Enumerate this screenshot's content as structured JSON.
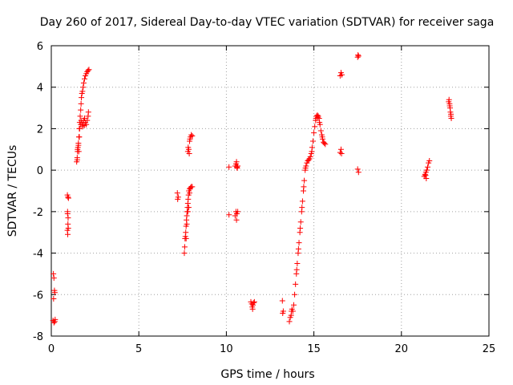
{
  "chart_data": {
    "type": "scatter",
    "title": "Day 260 of 2017, Sidereal Day-to-day VTEC variation (SDTVAR) for receiver saga",
    "xlabel": "GPS time / hours",
    "ylabel": "SDTVAR / TECUs",
    "xlim": [
      0,
      25
    ],
    "ylim": [
      -8,
      6
    ],
    "xticks": [
      "0",
      "5",
      "10",
      "15",
      "20",
      "25"
    ],
    "yticks": [
      "-8",
      "-6",
      "-4",
      "-2",
      "0",
      "2",
      "4",
      "6"
    ],
    "grid": true,
    "marker": "plus",
    "color": "#ff0000",
    "series": [
      {
        "points": [
          [
            0.1,
            -7.25
          ],
          [
            0.15,
            -7.35
          ],
          [
            0.2,
            -7.3
          ],
          [
            0.22,
            -7.2
          ],
          [
            0.12,
            -5.0
          ],
          [
            0.15,
            -5.2
          ],
          [
            0.18,
            -5.8
          ],
          [
            0.13,
            -6.2
          ],
          [
            0.2,
            -5.9
          ],
          [
            0.92,
            -1.2
          ],
          [
            0.95,
            -1.3
          ],
          [
            0.98,
            -1.35
          ],
          [
            0.93,
            -2.0
          ],
          [
            0.96,
            -2.3
          ],
          [
            0.95,
            -2.6
          ],
          [
            0.92,
            -2.9
          ],
          [
            0.94,
            -3.1
          ],
          [
            0.97,
            -2.8
          ],
          [
            0.93,
            -2.1
          ],
          [
            1.45,
            0.4
          ],
          [
            1.48,
            0.6
          ],
          [
            1.5,
            0.9
          ],
          [
            1.52,
            1.1
          ],
          [
            1.55,
            1.3
          ],
          [
            1.58,
            1.6
          ],
          [
            1.6,
            2.0
          ],
          [
            1.62,
            2.3
          ],
          [
            1.65,
            2.6
          ],
          [
            1.68,
            2.9
          ],
          [
            1.7,
            3.2
          ],
          [
            1.72,
            3.5
          ],
          [
            1.75,
            3.7
          ],
          [
            1.78,
            3.8
          ],
          [
            1.82,
            4.0
          ],
          [
            1.85,
            4.2
          ],
          [
            1.9,
            4.4
          ],
          [
            1.95,
            4.55
          ],
          [
            2.0,
            4.65
          ],
          [
            2.05,
            4.75
          ],
          [
            2.1,
            4.8
          ],
          [
            2.15,
            4.85
          ],
          [
            1.5,
            1.0
          ],
          [
            1.55,
            1.2
          ],
          [
            1.6,
            1.6
          ],
          [
            1.62,
            2.0
          ],
          [
            1.68,
            2.2
          ],
          [
            1.75,
            2.3
          ],
          [
            1.8,
            2.2
          ],
          [
            1.85,
            2.4
          ],
          [
            1.9,
            2.5
          ],
          [
            1.95,
            2.3
          ],
          [
            2.0,
            2.2
          ],
          [
            2.05,
            2.4
          ],
          [
            2.1,
            2.6
          ],
          [
            2.12,
            2.8
          ],
          [
            1.7,
            2.4
          ],
          [
            1.78,
            2.1
          ],
          [
            1.88,
            2.15
          ],
          [
            1.48,
            0.5
          ],
          [
            1.57,
            0.9
          ],
          [
            7.2,
            -1.1
          ],
          [
            7.25,
            -1.3
          ],
          [
            7.22,
            -1.4
          ],
          [
            7.6,
            -4.0
          ],
          [
            7.62,
            -3.7
          ],
          [
            7.64,
            -3.3
          ],
          [
            7.66,
            -3.2
          ],
          [
            7.68,
            -3.0
          ],
          [
            7.7,
            -2.7
          ],
          [
            7.72,
            -2.4
          ],
          [
            7.74,
            -2.2
          ],
          [
            7.76,
            -2.0
          ],
          [
            7.78,
            -1.8
          ],
          [
            7.8,
            -1.6
          ],
          [
            7.82,
            -1.4
          ],
          [
            7.84,
            -1.2
          ],
          [
            7.86,
            -1.0
          ],
          [
            7.9,
            -0.9
          ],
          [
            7.95,
            -0.85
          ],
          [
            8.0,
            -0.8
          ],
          [
            8.05,
            -0.8
          ],
          [
            7.7,
            -3.3
          ],
          [
            7.74,
            -2.6
          ],
          [
            7.8,
            -2.0
          ],
          [
            7.85,
            -1.8
          ],
          [
            7.9,
            -1.1
          ],
          [
            7.8,
            0.9
          ],
          [
            7.85,
            1.0
          ],
          [
            7.82,
            1.1
          ],
          [
            7.88,
            0.8
          ],
          [
            7.9,
            1.4
          ],
          [
            7.95,
            1.6
          ],
          [
            8.0,
            1.7
          ],
          [
            8.05,
            1.65
          ],
          [
            7.92,
            1.5
          ],
          [
            10.15,
            0.15
          ],
          [
            10.5,
            0.2
          ],
          [
            10.55,
            0.3
          ],
          [
            10.58,
            0.4
          ],
          [
            10.6,
            0.15
          ],
          [
            10.62,
            0.1
          ],
          [
            10.65,
            0.2
          ],
          [
            10.15,
            -2.15
          ],
          [
            10.5,
            -2.2
          ],
          [
            10.55,
            -2.0
          ],
          [
            10.58,
            -2.4
          ],
          [
            10.6,
            -2.1
          ],
          [
            10.65,
            -2.0
          ],
          [
            11.4,
            -6.35
          ],
          [
            11.45,
            -6.45
          ],
          [
            11.48,
            -6.6
          ],
          [
            11.5,
            -6.7
          ],
          [
            11.52,
            -6.5
          ],
          [
            11.55,
            -6.4
          ],
          [
            11.6,
            -6.35
          ],
          [
            13.2,
            -6.3
          ],
          [
            13.25,
            -6.8
          ],
          [
            13.22,
            -6.9
          ],
          [
            13.6,
            -7.3
          ],
          [
            13.65,
            -7.1
          ],
          [
            13.7,
            -7.0
          ],
          [
            13.72,
            -6.8
          ],
          [
            13.75,
            -6.7
          ],
          [
            13.8,
            -6.8
          ],
          [
            13.85,
            -6.5
          ],
          [
            13.9,
            -6.0
          ],
          [
            13.95,
            -5.5
          ],
          [
            14.0,
            -5.0
          ],
          [
            14.05,
            -4.5
          ],
          [
            14.1,
            -4.0
          ],
          [
            14.15,
            -3.5
          ],
          [
            14.2,
            -3.0
          ],
          [
            14.25,
            -2.5
          ],
          [
            14.3,
            -2.0
          ],
          [
            14.35,
            -1.5
          ],
          [
            14.4,
            -1.0
          ],
          [
            14.45,
            -0.5
          ],
          [
            14.5,
            0.0
          ],
          [
            14.55,
            0.2
          ],
          [
            14.6,
            0.35
          ],
          [
            14.65,
            0.45
          ],
          [
            14.7,
            0.5
          ],
          [
            14.75,
            0.55
          ],
          [
            14.8,
            0.65
          ],
          [
            14.85,
            0.8
          ],
          [
            14.9,
            1.1
          ],
          [
            14.95,
            1.4
          ],
          [
            15.0,
            1.8
          ],
          [
            15.05,
            2.1
          ],
          [
            15.1,
            2.4
          ],
          [
            15.15,
            2.6
          ],
          [
            15.2,
            2.65
          ],
          [
            15.25,
            2.6
          ],
          [
            15.3,
            2.5
          ],
          [
            15.35,
            2.2
          ],
          [
            15.4,
            1.9
          ],
          [
            15.45,
            1.7
          ],
          [
            15.5,
            1.5
          ],
          [
            15.55,
            1.35
          ],
          [
            15.6,
            1.3
          ],
          [
            15.65,
            1.25
          ],
          [
            14.02,
            -4.8
          ],
          [
            14.12,
            -3.8
          ],
          [
            14.22,
            -2.8
          ],
          [
            14.32,
            -1.8
          ],
          [
            14.42,
            -0.8
          ],
          [
            14.52,
            0.1
          ],
          [
            14.88,
            0.9
          ],
          [
            15.12,
            2.5
          ],
          [
            15.22,
            2.55
          ],
          [
            15.32,
            2.3
          ],
          [
            15.48,
            1.6
          ],
          [
            16.5,
            4.55
          ],
          [
            16.55,
            4.7
          ],
          [
            16.6,
            4.6
          ],
          [
            16.5,
            0.85
          ],
          [
            16.55,
            1.0
          ],
          [
            16.58,
            0.8
          ],
          [
            17.5,
            5.45
          ],
          [
            17.52,
            5.55
          ],
          [
            17.55,
            5.5
          ],
          [
            17.5,
            0.05
          ],
          [
            17.55,
            -0.1
          ],
          [
            21.3,
            -0.3
          ],
          [
            21.35,
            -0.2
          ],
          [
            21.4,
            -0.1
          ],
          [
            21.42,
            -0.4
          ],
          [
            21.45,
            0.0
          ],
          [
            21.5,
            0.15
          ],
          [
            21.55,
            0.35
          ],
          [
            21.6,
            0.45
          ],
          [
            21.38,
            -0.25
          ],
          [
            22.7,
            3.3
          ],
          [
            22.75,
            3.2
          ],
          [
            22.78,
            3.0
          ],
          [
            22.8,
            2.8
          ],
          [
            22.82,
            2.6
          ],
          [
            22.85,
            2.5
          ],
          [
            22.72,
            3.4
          ],
          [
            22.76,
            3.1
          ],
          [
            22.83,
            2.7
          ]
        ]
      }
    ]
  }
}
